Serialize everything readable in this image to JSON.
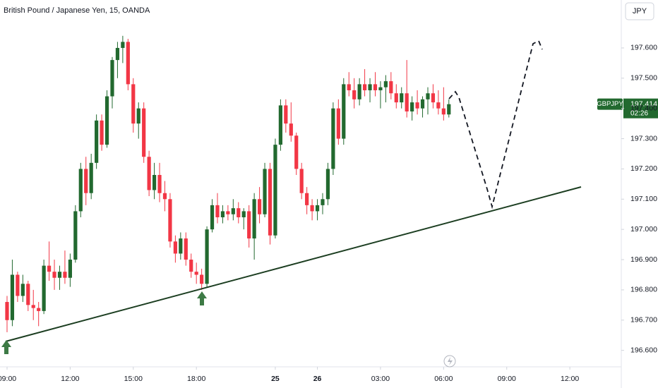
{
  "chart_data": {
    "type": "candlestick",
    "title": "British Pound / Japanese Yen, 15, OANDA",
    "currency_button": "JPY",
    "symbol": "GBPJPY",
    "last_price": 197.414,
    "countdown": "02:26",
    "up_color": "#22692f",
    "down_color": "#f23645",
    "open": [
      196.76,
      196.7,
      196.85,
      196.78,
      196.82,
      196.75,
      196.74,
      196.73,
      196.88,
      196.86,
      196.84,
      196.86,
      196.84,
      196.9,
      197.06,
      197.2,
      197.12,
      197.22,
      197.36,
      197.28,
      197.44,
      197.56,
      197.6,
      197.62,
      197.48,
      197.35,
      197.4,
      197.24,
      197.13,
      197.18,
      197.12,
      197.1,
      196.96,
      196.92,
      196.97,
      196.9,
      196.86,
      196.85,
      196.82,
      197.0,
      197.08,
      197.04,
      197.06,
      197.05,
      197.07,
      197.04,
      197.06,
      196.97,
      197.1,
      197.05,
      197.2,
      196.98,
      197.28,
      197.41,
      197.35,
      197.31,
      197.2,
      197.12,
      197.08,
      197.06,
      197.08,
      197.1,
      197.2,
      197.4,
      197.3,
      197.48,
      197.46,
      197.43,
      197.48,
      197.46,
      197.48,
      197.46,
      197.47,
      197.49,
      197.45,
      197.42,
      197.45,
      197.39,
      197.42,
      197.4,
      197.43,
      197.45,
      197.42,
      197.4,
      197.38
    ],
    "high": [
      196.78,
      196.9,
      196.86,
      196.85,
      196.83,
      196.8,
      196.76,
      196.9,
      196.96,
      196.9,
      196.88,
      196.93,
      196.92,
      197.08,
      197.22,
      197.24,
      197.25,
      197.38,
      197.38,
      197.46,
      197.57,
      197.62,
      197.64,
      197.63,
      197.5,
      197.42,
      197.42,
      197.26,
      197.22,
      197.22,
      197.16,
      197.12,
      196.98,
      196.99,
      196.99,
      196.92,
      196.89,
      196.87,
      197.01,
      197.1,
      197.12,
      197.08,
      197.08,
      197.1,
      197.09,
      197.07,
      197.08,
      197.12,
      197.14,
      197.22,
      197.22,
      197.3,
      197.43,
      197.43,
      197.42,
      197.32,
      197.22,
      197.14,
      197.1,
      197.1,
      197.12,
      197.22,
      197.42,
      197.43,
      197.5,
      197.52,
      197.5,
      197.5,
      197.53,
      197.5,
      197.52,
      197.49,
      197.51,
      197.52,
      197.48,
      197.47,
      197.56,
      197.44,
      197.46,
      197.44,
      197.47,
      197.48,
      197.46,
      197.47,
      197.43
    ],
    "low": [
      196.66,
      196.68,
      196.76,
      196.76,
      196.73,
      196.7,
      196.68,
      196.72,
      196.83,
      196.8,
      196.8,
      196.82,
      196.81,
      196.89,
      197.04,
      197.08,
      197.1,
      197.2,
      197.26,
      197.27,
      197.4,
      197.5,
      197.55,
      197.46,
      197.32,
      197.3,
      197.22,
      197.11,
      197.1,
      197.09,
      197.06,
      196.94,
      196.89,
      196.9,
      196.88,
      196.84,
      196.82,
      196.8,
      196.81,
      196.99,
      197.02,
      197.02,
      197.03,
      197.03,
      197.02,
      197.0,
      196.94,
      196.9,
      197.02,
      197.04,
      196.95,
      196.97,
      197.26,
      197.32,
      197.29,
      197.18,
      197.1,
      197.05,
      197.03,
      197.03,
      197.05,
      197.08,
      197.18,
      197.28,
      197.28,
      197.44,
      197.4,
      197.41,
      197.44,
      197.42,
      197.44,
      197.4,
      197.42,
      197.43,
      197.4,
      197.4,
      197.37,
      197.36,
      197.38,
      197.37,
      197.38,
      197.4,
      197.38,
      197.36,
      197.37
    ],
    "close": [
      196.7,
      196.85,
      196.78,
      196.82,
      196.75,
      196.74,
      196.73,
      196.88,
      196.86,
      196.84,
      196.86,
      196.84,
      196.9,
      197.06,
      197.2,
      197.12,
      197.22,
      197.36,
      197.28,
      197.44,
      197.56,
      197.6,
      197.62,
      197.48,
      197.35,
      197.4,
      197.24,
      197.13,
      197.18,
      197.12,
      197.1,
      196.96,
      196.92,
      196.97,
      196.9,
      196.86,
      196.85,
      196.82,
      197.0,
      197.08,
      197.04,
      197.06,
      197.05,
      197.07,
      197.04,
      197.06,
      196.97,
      197.1,
      197.05,
      197.2,
      196.98,
      197.28,
      197.41,
      197.35,
      197.31,
      197.2,
      197.12,
      197.08,
      197.06,
      197.08,
      197.1,
      197.2,
      197.4,
      197.3,
      197.48,
      197.46,
      197.43,
      197.48,
      197.46,
      197.48,
      197.46,
      197.47,
      197.49,
      197.45,
      197.42,
      197.45,
      197.39,
      197.42,
      197.4,
      197.43,
      197.45,
      197.42,
      197.4,
      197.38,
      197.414
    ],
    "ylim": [
      196.57,
      197.7585
    ],
    "yticks": [
      {
        "value": 196.6,
        "label": "196.600"
      },
      {
        "value": 196.7,
        "label": "196.700"
      },
      {
        "value": 196.8,
        "label": "196.800"
      },
      {
        "value": 196.9,
        "label": "196.900"
      },
      {
        "value": 197.0,
        "label": "197.000"
      },
      {
        "value": 197.1,
        "label": "197.100"
      },
      {
        "value": 197.2,
        "label": "197.200"
      },
      {
        "value": 197.3,
        "label": "197.300"
      },
      {
        "value": 197.4,
        "label": "197.400"
      },
      {
        "value": 197.5,
        "label": "197.500"
      },
      {
        "value": 197.6,
        "label": "197.600"
      }
    ],
    "xlim": [
      -1.34,
      116.78
    ],
    "xticks": [
      {
        "value": 0,
        "label": "09:00"
      },
      {
        "value": 12,
        "label": "12:00"
      },
      {
        "value": 24,
        "label": "15:00"
      },
      {
        "value": 36,
        "label": "18:00"
      },
      {
        "value": 51,
        "label": "25"
      },
      {
        "value": 59,
        "label": "26"
      },
      {
        "value": 71,
        "label": "03:00"
      },
      {
        "value": 83,
        "label": "06:00"
      },
      {
        "value": 95,
        "label": "09:00"
      },
      {
        "value": 107,
        "label": "12:00"
      }
    ]
  }
}
